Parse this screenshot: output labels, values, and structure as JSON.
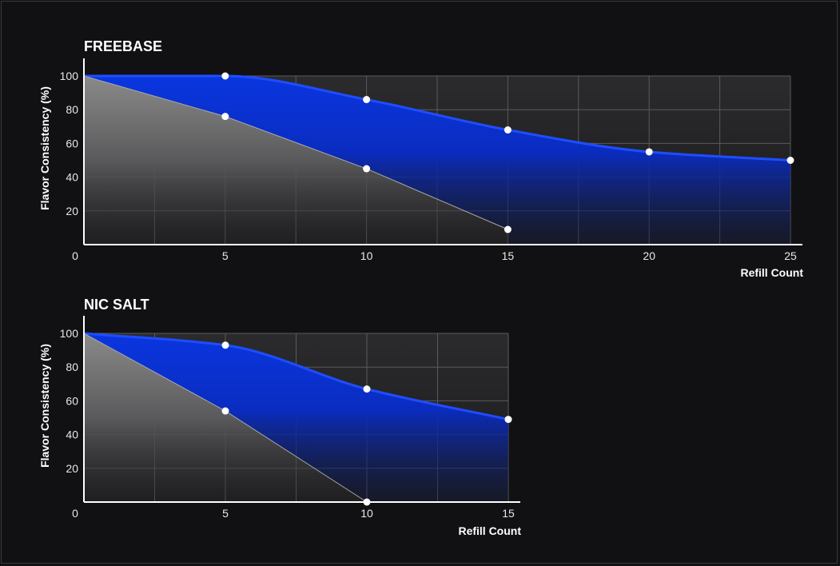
{
  "chart_data": [
    {
      "type": "area",
      "title": "FREEBASE",
      "xlabel": "Refill Count",
      "ylabel": "Flavor Consistency (%)",
      "xlim": [
        0,
        25
      ],
      "ylim": [
        0,
        100
      ],
      "xticks": [
        0,
        5,
        10,
        15,
        20,
        25
      ],
      "yticks": [
        20,
        40,
        60,
        80,
        100
      ],
      "grid": true,
      "series": [
        {
          "color": "#1f4dff",
          "x": [
            0,
            5,
            10,
            15,
            20,
            25
          ],
          "y": [
            100,
            100,
            86,
            68,
            55,
            50
          ]
        },
        {
          "color": "#7a7a7a",
          "x": [
            0,
            5,
            10,
            15
          ],
          "y": [
            100,
            76,
            45,
            9
          ]
        }
      ]
    },
    {
      "type": "area",
      "title": "NIC SALT",
      "xlabel": "Refill Count",
      "ylabel": "Flavor Consistency (%)",
      "xlim": [
        0,
        15
      ],
      "ylim": [
        0,
        100
      ],
      "xticks": [
        0,
        5,
        10,
        15
      ],
      "yticks": [
        20,
        40,
        60,
        80,
        100
      ],
      "grid": true,
      "series": [
        {
          "color": "#1f4dff",
          "x": [
            0,
            5,
            10,
            15
          ],
          "y": [
            100,
            93,
            67,
            49
          ]
        },
        {
          "color": "#7a7a7a",
          "x": [
            0,
            5,
            10
          ],
          "y": [
            100,
            54,
            0
          ]
        }
      ]
    }
  ]
}
